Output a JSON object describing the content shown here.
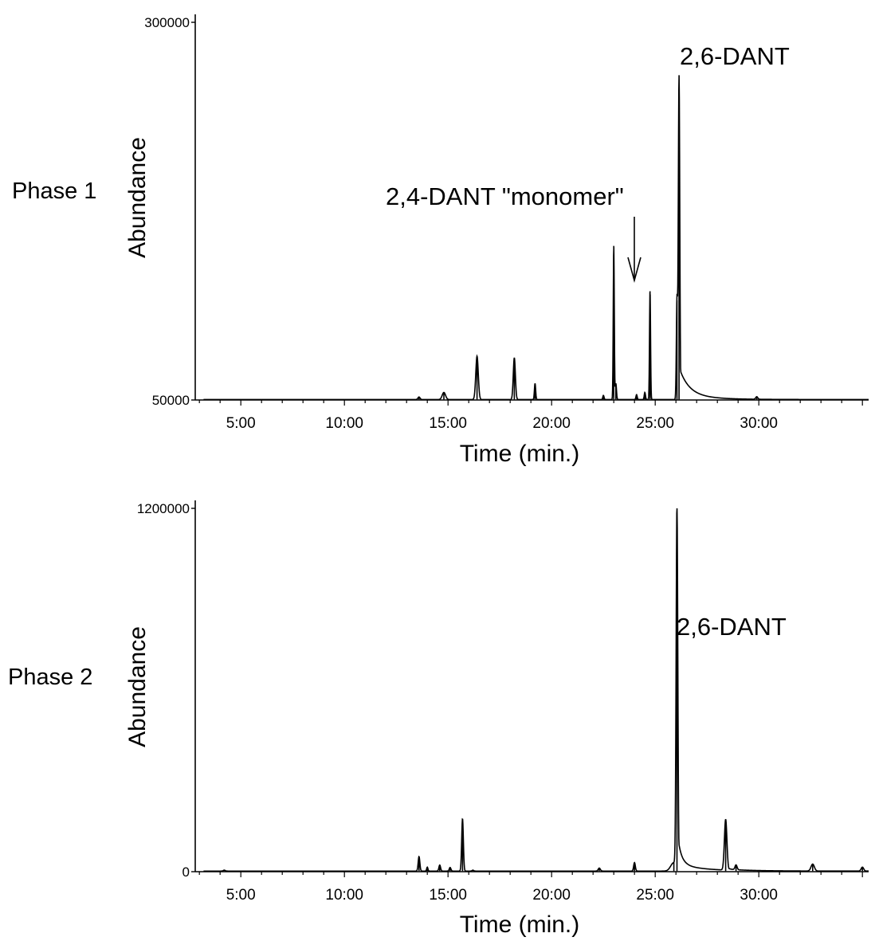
{
  "chart_data": [
    {
      "type": "line",
      "panel_label": "Phase 1",
      "xlabel": "Time (min.)",
      "ylabel": "Abundance",
      "xlim": [
        2.8,
        35.3
      ],
      "ylim": [
        50000,
        300000
      ],
      "x_ticks": [
        {
          "value": 5,
          "label": "5:00"
        },
        {
          "value": 10,
          "label": "10:00"
        },
        {
          "value": 15,
          "label": "15:00"
        },
        {
          "value": 20,
          "label": "20:00"
        },
        {
          "value": 25,
          "label": "25:00"
        },
        {
          "value": 30,
          "label": "30:00"
        }
      ],
      "y_ticks": [
        {
          "value": 50000,
          "label": "50000"
        },
        {
          "value": 300000,
          "label": "300000"
        }
      ],
      "baseline": 50300,
      "series": [
        {
          "color": "#000000",
          "peaks": [
            {
              "t": 13.6,
              "h": 52000,
              "w": 0.05
            },
            {
              "t": 14.8,
              "h": 55000,
              "w": 0.08
            },
            {
              "t": 16.4,
              "h": 79000,
              "w": 0.06
            },
            {
              "t": 18.2,
              "h": 78000,
              "w": 0.05
            },
            {
              "t": 19.2,
              "h": 61000,
              "w": 0.03
            },
            {
              "t": 22.5,
              "h": 53000,
              "w": 0.03
            },
            {
              "t": 23.0,
              "h": 152000,
              "w": 0.025
            },
            {
              "t": 23.1,
              "h": 61000,
              "w": 0.03
            },
            {
              "t": 24.1,
              "h": 53500,
              "w": 0.03
            },
            {
              "t": 24.5,
              "h": 55000,
              "w": 0.03
            },
            {
              "t": 24.75,
              "h": 122000,
              "w": 0.025
            },
            {
              "t": 26.05,
              "h": 116000,
              "w": 0.03
            },
            {
              "t": 26.15,
              "h": 265000,
              "w": 0.035,
              "tail": 0.45
            },
            {
              "t": 29.9,
              "h": 52000,
              "w": 0.05
            }
          ]
        }
      ],
      "annotations": [
        {
          "text": "2,6-DANT",
          "x": 26.15
        },
        {
          "text": "2,4-DANT \"monomer\"",
          "x": 24.75
        }
      ]
    },
    {
      "type": "line",
      "panel_label": "Phase 2",
      "xlabel": "Time (min.)",
      "ylabel": "Abundance",
      "xlim": [
        2.8,
        35.3
      ],
      "ylim": [
        0,
        1200000
      ],
      "x_ticks": [
        {
          "value": 5,
          "label": "5:00"
        },
        {
          "value": 10,
          "label": "10:00"
        },
        {
          "value": 15,
          "label": "15:00"
        },
        {
          "value": 20,
          "label": "20:00"
        },
        {
          "value": 25,
          "label": "25:00"
        },
        {
          "value": 30,
          "label": "30:00"
        }
      ],
      "y_ticks": [
        {
          "value": 0,
          "label": "0"
        },
        {
          "value": 1200000,
          "label": "1200000"
        }
      ],
      "baseline": 2000,
      "series": [
        {
          "color": "#000000",
          "peaks": [
            {
              "t": 4.2,
              "h": 5000,
              "w": 0.05
            },
            {
              "t": 13.6,
              "h": 50000,
              "w": 0.04
            },
            {
              "t": 14.0,
              "h": 15000,
              "w": 0.03
            },
            {
              "t": 14.6,
              "h": 22000,
              "w": 0.04
            },
            {
              "t": 15.1,
              "h": 14000,
              "w": 0.04
            },
            {
              "t": 15.7,
              "h": 175000,
              "w": 0.04
            },
            {
              "t": 16.2,
              "h": 5000,
              "w": 0.04
            },
            {
              "t": 22.3,
              "h": 12000,
              "w": 0.05
            },
            {
              "t": 24.0,
              "h": 30000,
              "w": 0.04
            },
            {
              "t": 25.9,
              "h": 30000,
              "w": 0.15
            },
            {
              "t": 26.05,
              "h": 1200000,
              "w": 0.04,
              "tail": 0.2
            },
            {
              "t": 28.4,
              "h": 170000,
              "w": 0.06,
              "tail": 0.1
            },
            {
              "t": 28.9,
              "h": 18000,
              "w": 0.05
            },
            {
              "t": 32.6,
              "h": 25000,
              "w": 0.08
            },
            {
              "t": 35.0,
              "h": 15000,
              "w": 0.06
            }
          ]
        }
      ],
      "annotations": [
        {
          "text": "2,6-DANT",
          "x": 26.05
        }
      ]
    }
  ]
}
